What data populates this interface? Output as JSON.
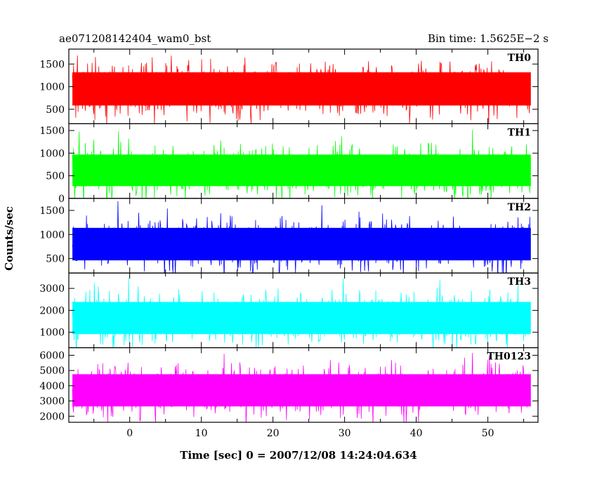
{
  "chart_data": {
    "type": "line",
    "title_left": "ae071208142404_wam0_bst",
    "title_right": "Bin time: 1.5625E−2 s",
    "xlabel": "Time [sec] 0 = 2007/12/08 14:24:04.634",
    "ylabel": "Counts/sec",
    "xlim": [
      -8.5,
      57
    ],
    "x_range": [
      -8,
      56
    ],
    "x_ticks": [
      0,
      10,
      20,
      30,
      40,
      50
    ],
    "x_tick_labels": [
      "0",
      "10",
      "20",
      "30",
      "40",
      "50"
    ],
    "grid": false,
    "panels": [
      {
        "name": "TH0",
        "color": "#ff0000",
        "ylim": [
          180,
          1830
        ],
        "y_ticks": [
          500,
          1000,
          1500
        ],
        "y_tick_labels": [
          "500",
          "1000",
          "1500"
        ],
        "mean": 950,
        "band": [
          200,
          1830
        ]
      },
      {
        "name": "TH1",
        "color": "#00ff00",
        "ylim": [
          0,
          1650
        ],
        "y_ticks": [
          0,
          500,
          1000,
          1500
        ],
        "y_tick_labels": [
          "0",
          "500",
          "1000",
          "1500"
        ],
        "mean": 620,
        "band": [
          50,
          1600
        ]
      },
      {
        "name": "TH2",
        "color": "#0000ff",
        "ylim": [
          200,
          1750
        ],
        "y_ticks": [
          500,
          1000,
          1500
        ],
        "y_tick_labels": [
          "500",
          "1000",
          "1500"
        ],
        "mean": 800,
        "band": [
          250,
          1750
        ]
      },
      {
        "name": "TH3",
        "color": "#00ffff",
        "ylim": [
          300,
          3700
        ],
        "y_ticks": [
          1000,
          2000,
          3000
        ],
        "y_tick_labels": [
          "1000",
          "2000",
          "3000"
        ],
        "mean": 1650,
        "band": [
          350,
          3600
        ]
      },
      {
        "name": "TH0123",
        "color": "#ff00ff",
        "ylim": [
          1600,
          6500
        ],
        "y_ticks": [
          2000,
          3000,
          4000,
          5000,
          6000
        ],
        "y_tick_labels": [
          "2000",
          "3000",
          "4000",
          "5000",
          "6000"
        ],
        "mean": 3700,
        "band": [
          1700,
          6400
        ]
      }
    ]
  }
}
